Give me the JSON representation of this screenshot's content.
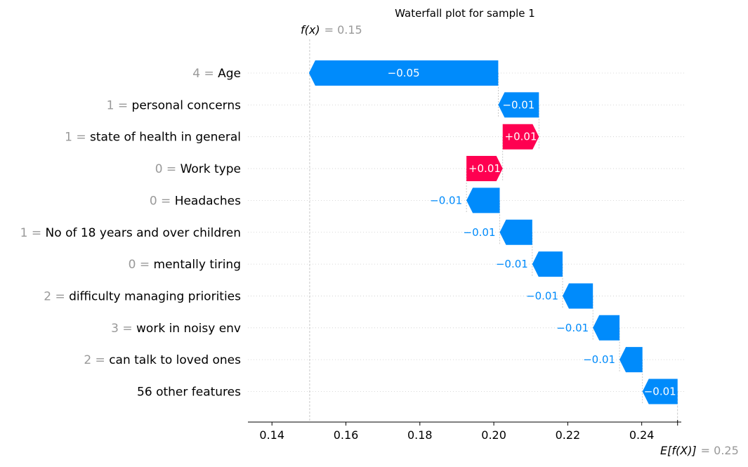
{
  "chart_data": {
    "type": "waterfall",
    "title": "Waterfall plot for sample 1",
    "fx_label": "f(x)",
    "fx_value": "= 0.15",
    "fx": 0.1502,
    "efx_label": "E[f(X)]",
    "efx_value": "= 0.25",
    "efx": 0.2497,
    "xlim": [
      0.1335,
      0.2507
    ],
    "xticks": [
      0.14,
      0.16,
      0.18,
      0.2,
      0.22,
      0.24
    ],
    "xtick_labels": [
      "0.14",
      "0.16",
      "0.18",
      "0.20",
      "0.22",
      "0.24"
    ],
    "colors": {
      "positive": "#ff0051",
      "negative": "#008bfb",
      "value_gray": "#999999",
      "text": "#000000"
    },
    "features": [
      {
        "value": "4",
        "name": "Age",
        "shap": -0.0512,
        "label": "−0.05"
      },
      {
        "value": "1",
        "name": "personal concerns",
        "shap": -0.011,
        "label": "−0.01"
      },
      {
        "value": "1",
        "name": "state of health in general",
        "shap": 0.0098,
        "label": "+0.01"
      },
      {
        "value": "0",
        "name": "Work type",
        "shap": 0.0098,
        "label": "+0.01"
      },
      {
        "value": "0",
        "name": "Headaches",
        "shap": -0.009,
        "label": "−0.01"
      },
      {
        "value": "1",
        "name": "No of 18 years and over children",
        "shap": -0.0088,
        "label": "−0.01"
      },
      {
        "value": "0",
        "name": "mentally tiring",
        "shap": -0.0082,
        "label": "−0.01"
      },
      {
        "value": "2",
        "name": "difficulty managing priorities",
        "shap": -0.0082,
        "label": "−0.01"
      },
      {
        "value": "3",
        "name": "work in noisy env",
        "shap": -0.0072,
        "label": "−0.01"
      },
      {
        "value": "2",
        "name": "can talk to loved ones",
        "shap": -0.0062,
        "label": "−0.01"
      },
      {
        "value": "",
        "name": "56 other features",
        "shap": -0.0095,
        "label": "−0.01"
      }
    ]
  }
}
